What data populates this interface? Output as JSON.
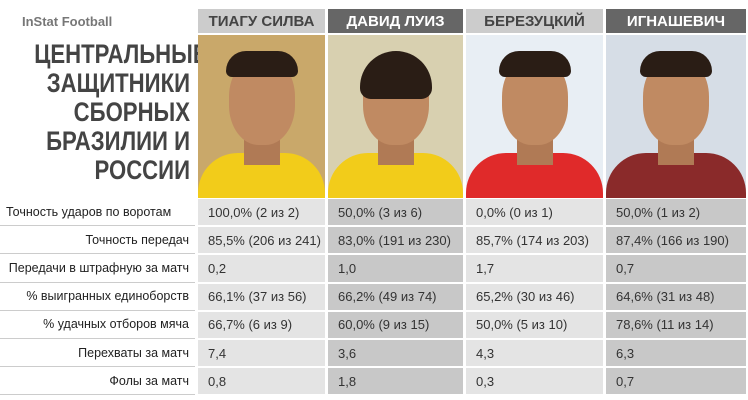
{
  "header": {
    "brand": "InStat Football",
    "title": [
      "ЦЕНТРАЛЬНЫЕ",
      "ЗАЩИТНИКИ",
      "СБОРНЫХ",
      "БРАЗИЛИИ И",
      "РОССИИ"
    ]
  },
  "players": [
    "ТИАГУ СИЛВА",
    "ДАВИД ЛУИЗ",
    "БЕРЕЗУЦКИЙ",
    "ИГНАШЕВИЧ"
  ],
  "rows": [
    {
      "label": "Точность ударов по воротам",
      "values": [
        "100,0% (2 из 2)",
        "50,0% (3 из 6)",
        "0,0% (0 из 1)",
        "50,0% (1 из 2)"
      ]
    },
    {
      "label": "Точность передач",
      "values": [
        "85,5% (206 из 241)",
        "83,0% (191 из 230)",
        "85,7% (174 из 203)",
        "87,4% (166 из 190)"
      ]
    },
    {
      "label": "Передачи в штрафную за матч",
      "values": [
        "0,2",
        "1,0",
        "1,7",
        "0,7"
      ]
    },
    {
      "label": "% выигранных единоборств",
      "values": [
        "66,1% (37 из 56)",
        "66,2% (49 из 74)",
        "65,2% (30 из 46)",
        "64,6% (31 из 48)"
      ]
    },
    {
      "label": "% удачных отборов мяча",
      "values": [
        "66,7% (6 из 9)",
        "60,0% (9 из 15)",
        "50,0% (5 из 10)",
        "78,6% (11 из 14)"
      ]
    },
    {
      "label": "Перехваты за матч",
      "values": [
        "7,4",
        "3,6",
        "4,3",
        "6,3"
      ]
    },
    {
      "label": "Фолы за матч",
      "values": [
        "0,8",
        "1,8",
        "0,3",
        "0,7"
      ]
    }
  ]
}
